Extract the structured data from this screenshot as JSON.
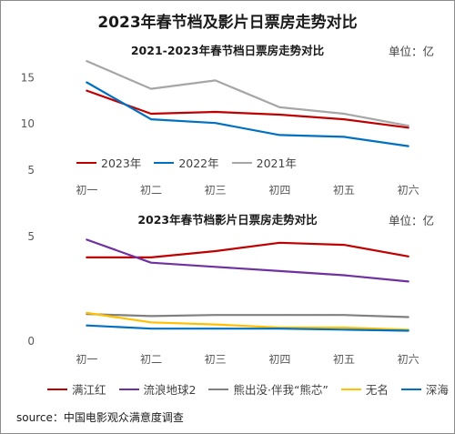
{
  "title": "2023年春节档及影片日票房走势对比",
  "source": "source：中国电影观众满意度调查",
  "chart_data": [
    {
      "type": "line",
      "title": "2021-2023年春节档日票房走势对比",
      "unit": "单位：亿",
      "categories": [
        "初一",
        "初二",
        "初三",
        "初四",
        "初五",
        "初六"
      ],
      "ylim": [
        5,
        17.5
      ],
      "yticks": [
        5,
        10,
        15
      ],
      "grid": false,
      "legend_position": "bottom",
      "series": [
        {
          "name": "2023年",
          "color": "#c00000",
          "values": [
            13.6,
            11.1,
            11.3,
            11.0,
            10.5,
            9.6
          ]
        },
        {
          "name": "2022年",
          "color": "#0070c0",
          "values": [
            14.5,
            10.5,
            10.1,
            8.8,
            8.6,
            7.6
          ]
        },
        {
          "name": "2021年",
          "color": "#a6a6a6",
          "values": [
            16.8,
            13.8,
            14.7,
            11.8,
            11.1,
            9.8
          ]
        }
      ]
    },
    {
      "type": "line",
      "title": "2023年春节档影片日票房走势对比",
      "unit": "单位：亿",
      "categories": [
        "初一",
        "初二",
        "初三",
        "初四",
        "初五",
        "初六"
      ],
      "ylim": [
        0,
        5.3
      ],
      "yticks": [
        0,
        5
      ],
      "grid": false,
      "legend_position": "bottom",
      "series": [
        {
          "name": "满江红",
          "color": "#c00000",
          "values": [
            4.0,
            4.0,
            4.3,
            4.7,
            4.6,
            4.05
          ]
        },
        {
          "name": "流浪地球2",
          "color": "#7030a0",
          "values": [
            4.85,
            3.75,
            3.55,
            3.35,
            3.15,
            2.85
          ]
        },
        {
          "name": "熊出没·伴我“熊芯”",
          "color": "#808080",
          "values": [
            1.3,
            1.2,
            1.25,
            1.25,
            1.25,
            1.15
          ]
        },
        {
          "name": "无名",
          "color": "#ffc000",
          "values": [
            1.35,
            0.9,
            0.8,
            0.65,
            0.65,
            0.55
          ]
        },
        {
          "name": "深海",
          "color": "#0070c0",
          "values": [
            0.75,
            0.6,
            0.6,
            0.6,
            0.55,
            0.5
          ]
        }
      ]
    }
  ]
}
